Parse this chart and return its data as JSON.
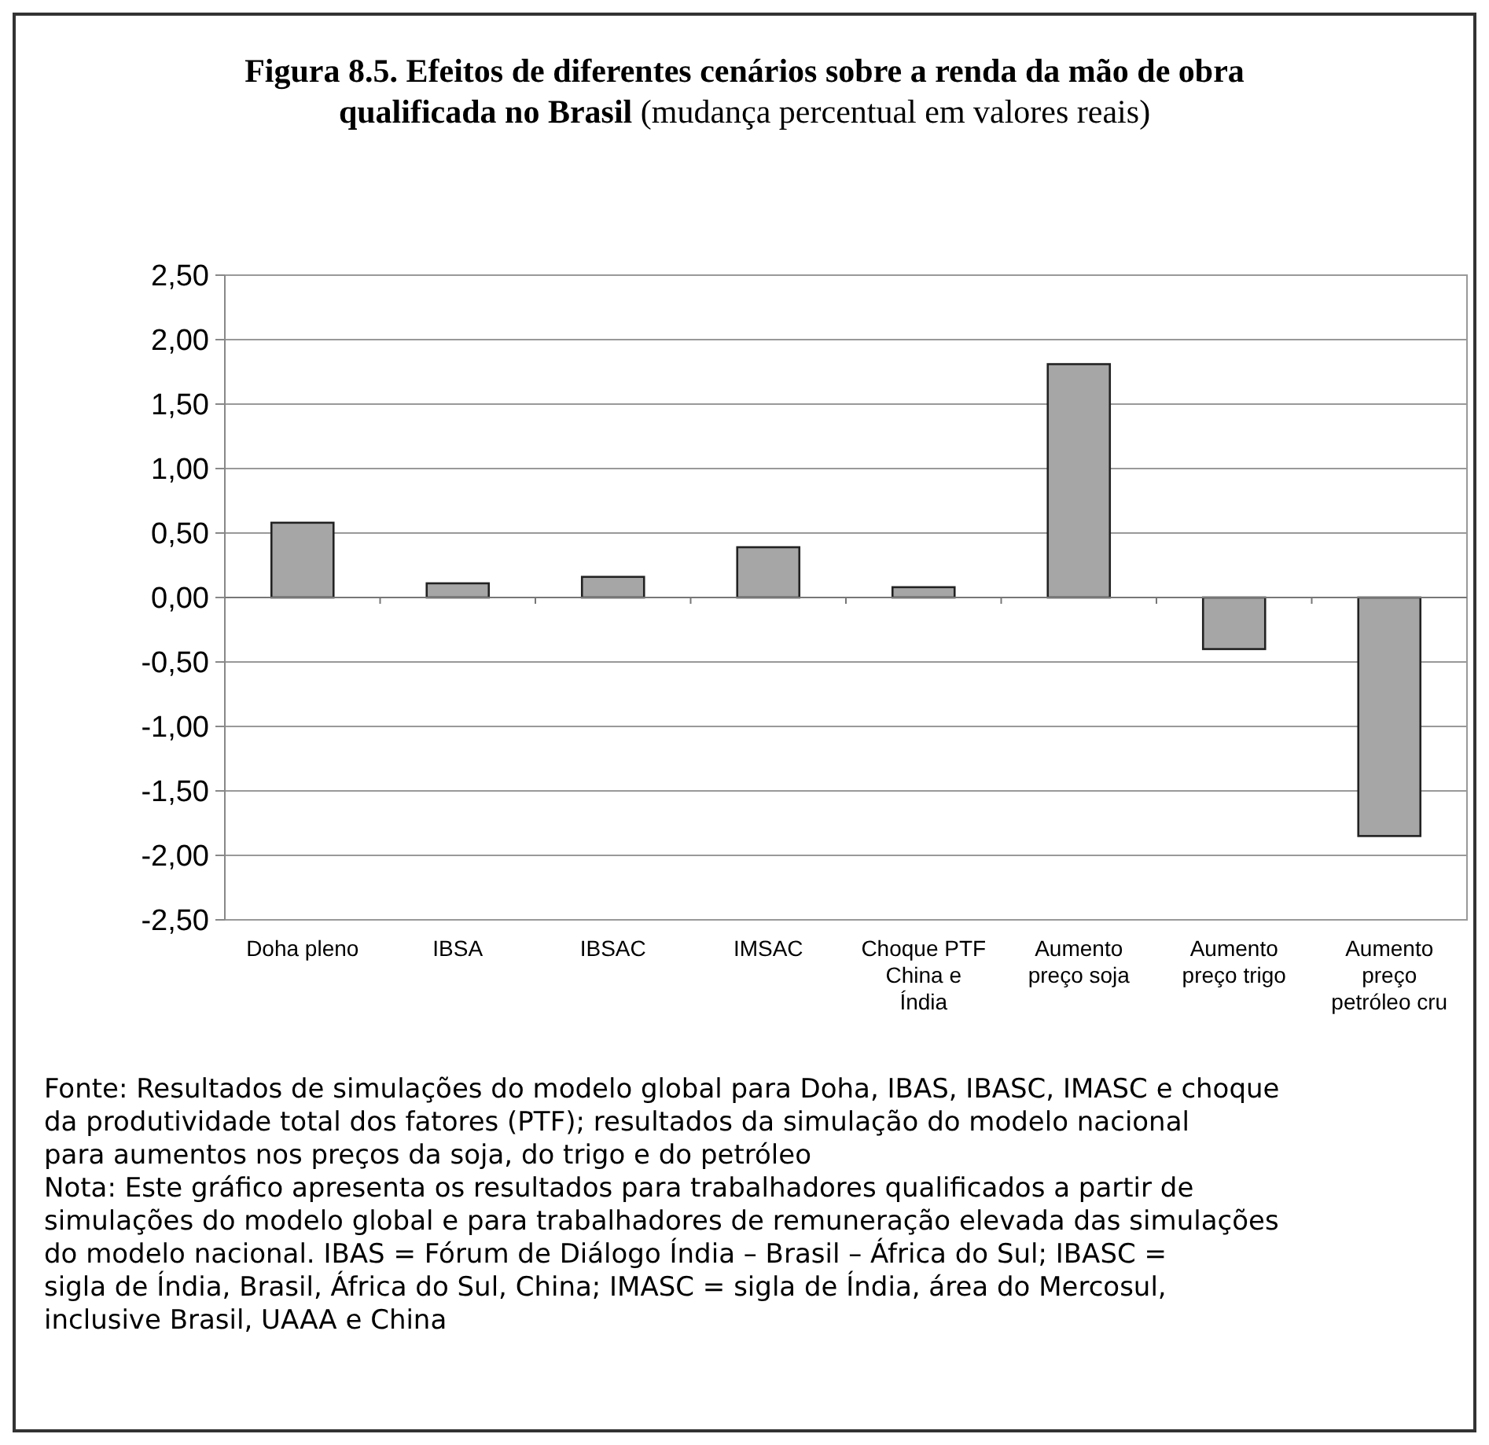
{
  "chart_data": {
    "type": "bar",
    "title": "Figura 8.5. Efeitos de diferentes cenários sobre a renda da mão de obra qualificada no Brasil",
    "subtitle": "(mudança percentual em valores reais)",
    "categories": [
      "Doha pleno",
      "IBSA",
      "IBSAC",
      "IMSAC",
      "Choque PTF China e Índia",
      "Aumento preço soja",
      "Aumento preço trigo",
      "Aumento preço petróleo cru"
    ],
    "values": [
      0.58,
      0.11,
      0.16,
      0.39,
      0.08,
      1.81,
      -0.4,
      -1.85
    ],
    "color": "#a6a6a6",
    "ylim": [
      -2.5,
      2.5
    ],
    "yticks": [
      {
        "value": -2.5,
        "label": "-2,50"
      },
      {
        "value": -2,
        "label": "-2,00"
      },
      {
        "value": -1.5,
        "label": "-1,50"
      },
      {
        "value": -1,
        "label": "-1,00"
      },
      {
        "value": -0.5,
        "label": "-0,50"
      },
      {
        "value": 0,
        "label": "0,00"
      },
      {
        "value": 0.5,
        "label": "0,50"
      },
      {
        "value": 1,
        "label": "1,00"
      },
      {
        "value": 1.5,
        "label": "1,50"
      },
      {
        "value": 2,
        "label": "2,00"
      },
      {
        "value": 2.5,
        "label": "2,50"
      }
    ],
    "grid": "y",
    "annotations": [
      "Fonte: Resultados de simulações do modelo global para Doha, IBAS, IBASC, IMASC e choque da produtividade total dos fatores (PTF); resultados da simulação do modelo nacional para aumentos nos preços da soja, do trigo e do petróleo",
      "Nota: Este gráfico apresenta os resultados para trabalhadores qualificados a partir de simulações do modelo global e para trabalhadores de remuneração elevada das simulações do modelo nacional. IBAS = Fórum de Diálogo Índia – Brasil – África do Sul; IBASC = sigla de Índia, Brasil, África do Sul, China; IMASC = sigla de Índia, área do  Mercosul, inclusive Brasil, UAAA e China"
    ]
  }
}
